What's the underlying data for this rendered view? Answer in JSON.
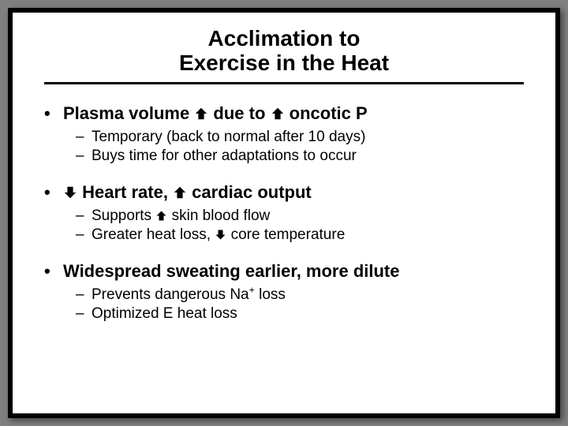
{
  "title_line1": "Acclimation to",
  "title_line2": "Exercise in the Heat",
  "arrows": {
    "up": "⬈",
    "down": "⬊"
  },
  "bullets": [
    {
      "main_html": "Plasma volume {UP} due to {UP} oncotic P",
      "subs": [
        "Temporary (back to normal after 10 days)",
        "Buys time for other adaptations to occur"
      ]
    },
    {
      "main_html": "{DOWN} Heart rate, {UP} cardiac output",
      "subs": [
        "Supports {UP} skin blood flow",
        "Greater heat loss, {DOWN} core temperature"
      ]
    },
    {
      "main_html": "Widespread sweating earlier, more dilute",
      "subs": [
        "Prevents dangerous Na{SUP+} loss",
        "Optimized E heat loss"
      ]
    }
  ],
  "style": {
    "background": "#808080",
    "frame_bg": "#000000",
    "slide_bg": "#ffffff",
    "text_color": "#000000",
    "title_fontsize": 28,
    "l1_fontsize": 22,
    "l2_fontsize": 19
  }
}
